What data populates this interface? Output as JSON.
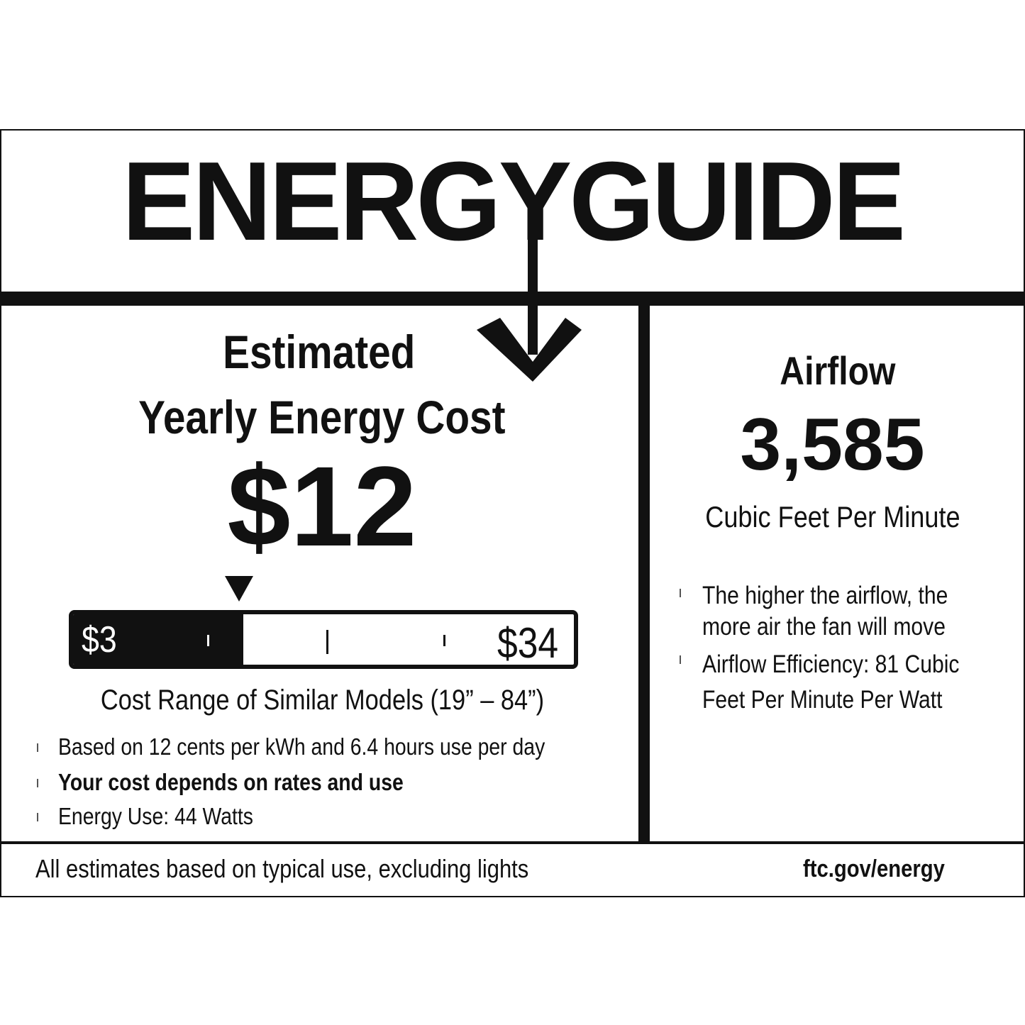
{
  "header": {
    "title": "ENERGYGUIDE"
  },
  "cost": {
    "heading_line1": "Estimated",
    "heading_line2": "Yearly Energy Cost",
    "value": "$12",
    "value_number": 12,
    "range_min_label": "$3",
    "range_max_label": "$34",
    "range_min": 3,
    "range_max": 34,
    "range_caption": "Cost Range of Similar Models (19” – 84”)",
    "bullets": [
      {
        "text": "Based on 12 cents per kWh and 6.4 hours use per day",
        "bold": false
      },
      {
        "text": "Your cost depends on rates and use",
        "bold": true
      },
      {
        "text": "Energy Use: 44 Watts",
        "bold": false
      }
    ]
  },
  "airflow": {
    "heading": "Airflow",
    "value": "3,585",
    "unit": "Cubic Feet Per Minute",
    "bullets": [
      {
        "lines": [
          "The higher the airflow, the",
          "more air the fan will move"
        ]
      },
      {
        "lines": [
          "Airflow Efficiency: 81 Cubic",
          "Feet Per Minute Per Watt"
        ]
      }
    ]
  },
  "footer": {
    "note": "All estimates based on typical use, excluding lights",
    "link": "ftc.gov/energy"
  },
  "colors": {
    "ink": "#111111",
    "background": "#ffffff"
  }
}
